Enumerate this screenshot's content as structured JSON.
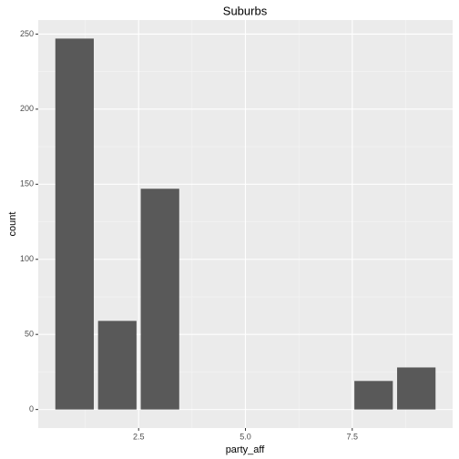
{
  "chart_data": {
    "type": "bar",
    "title": "Suburbs",
    "x_label": "party_aff",
    "y_label": "count",
    "x": [
      1,
      2,
      3,
      8,
      9
    ],
    "values": [
      247,
      59,
      147,
      19,
      28
    ],
    "bar_width": 0.9,
    "color": "#595959",
    "xlim": [
      0.15,
      9.85
    ],
    "xticks": [
      2.5,
      5.0,
      7.5
    ],
    "x_minor_ticks": [
      1.25,
      3.75,
      6.25,
      8.75
    ],
    "ylim": [
      -12.35,
      259.35
    ],
    "yticks": [
      0,
      50,
      100,
      150,
      200,
      250
    ],
    "y_minor_ticks": [
      25,
      75,
      125,
      175,
      225
    ],
    "grid": true,
    "panel_color": "#ebebeb"
  }
}
